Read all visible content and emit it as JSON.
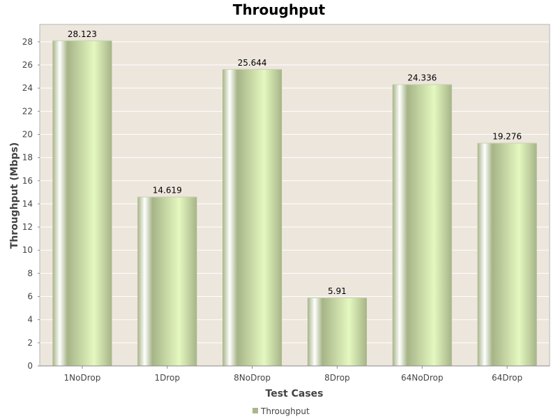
{
  "chart_data": {
    "type": "bar",
    "title": "Throughput",
    "xlabel": "Test Cases",
    "ylabel": "Throughput (Mbps)",
    "categories": [
      "1NoDrop",
      "1Drop",
      "8NoDrop",
      "8Drop",
      "64NoDrop",
      "64Drop"
    ],
    "series": [
      {
        "name": "Throughput",
        "values": [
          28.123,
          14.619,
          25.644,
          5.91,
          24.336,
          19.276
        ],
        "value_labels": [
          "28.123",
          "14.619",
          "25.644",
          "5.91",
          "24.336",
          "19.276"
        ]
      }
    ],
    "ylim": [
      0,
      29.5
    ],
    "yticks": [
      0,
      2,
      4,
      6,
      8,
      10,
      12,
      14,
      16,
      18,
      20,
      22,
      24,
      26,
      28
    ],
    "grid": true,
    "legend_position": "bottom",
    "colors": {
      "plot_background": "#ede6dd",
      "gridline": "#ffffff",
      "bar_dark": "#a6b487",
      "bar_light": "#e5f8c0",
      "bar_highlight": "#ffffff",
      "legend_swatch": "#a8b78c"
    }
  }
}
